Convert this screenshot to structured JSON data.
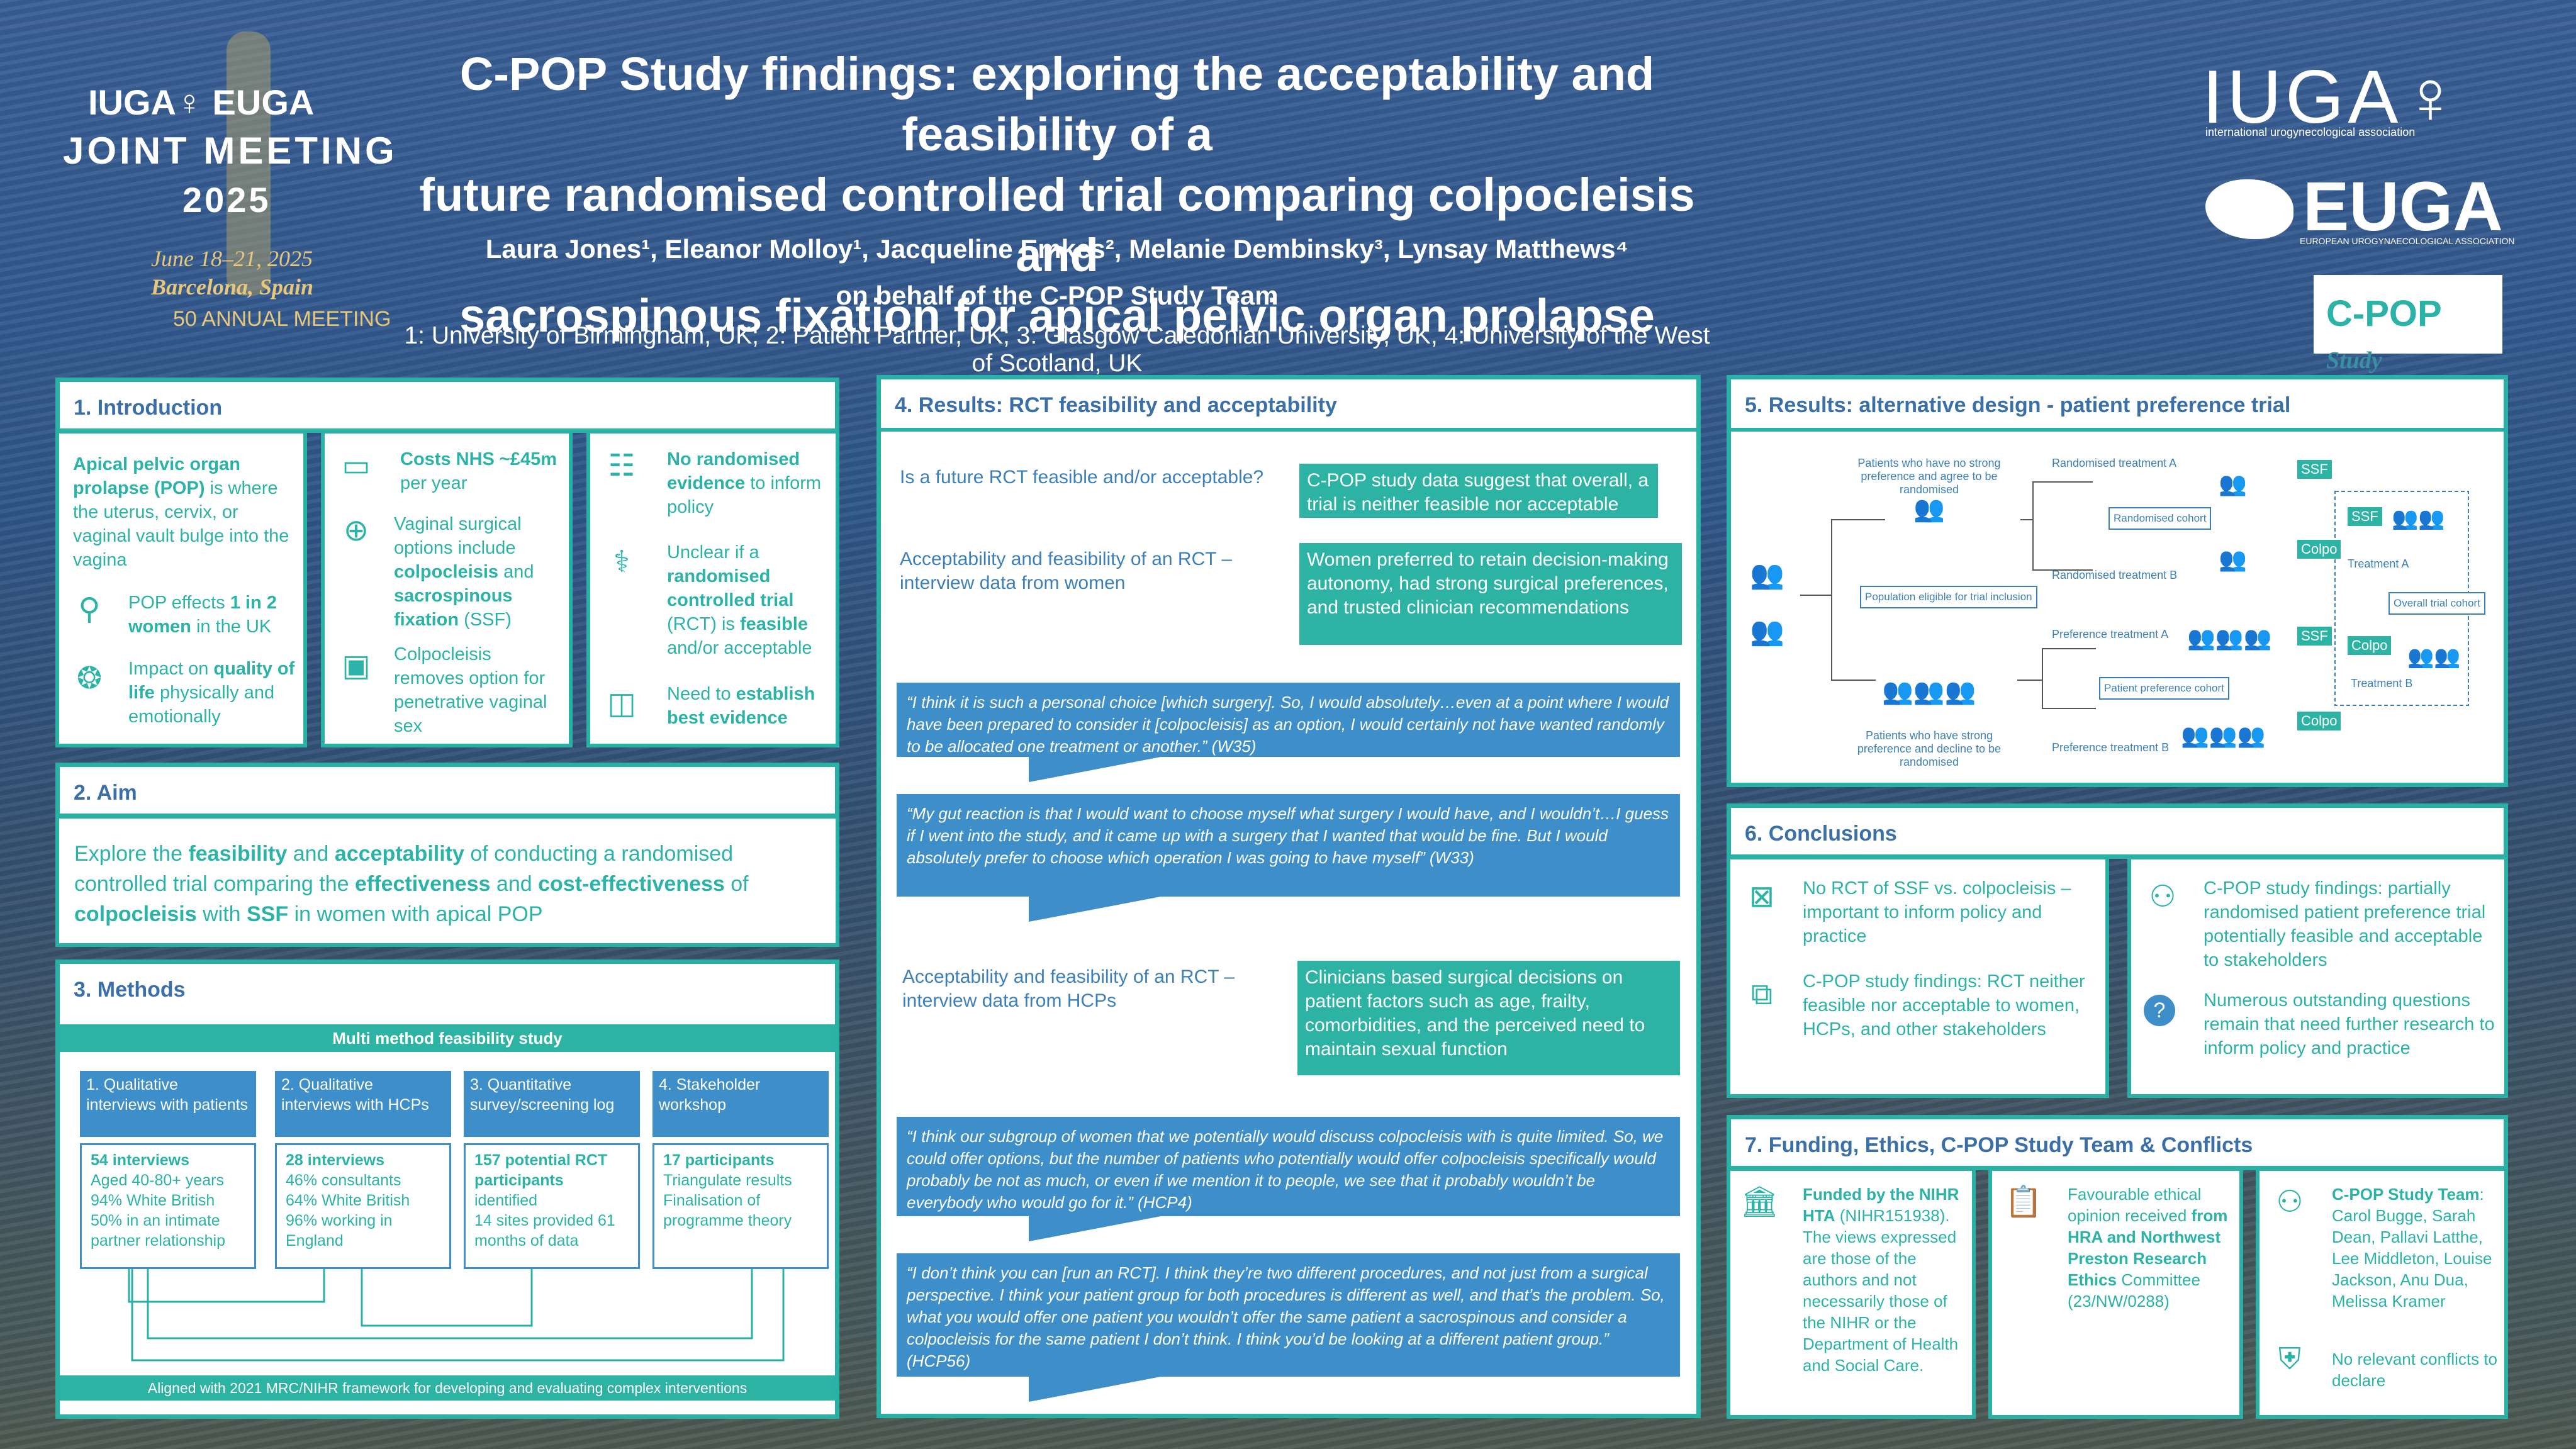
{
  "header": {
    "title_lines": [
      "C-POP Study findings: exploring the acceptability and feasibility of a",
      "future randomised controlled trial comparing colpocleisis and",
      "sacrospinous fixation for apical pelvic organ prolapse"
    ],
    "authors": "Laura Jones¹, Eleanor Molloy¹, Jacqueline Emkes², Melanie Dembinsky³, Lynsay Matthews⁴",
    "behalf": "on behalf of the C-POP Study Team",
    "affiliations": "1: University of Birmingham, UK; 2: Patient Partner, UK; 3: Glasgow Caledonian University, UK, 4: University of the West of Scotland, UK"
  },
  "logos": {
    "joint_meeting": {
      "line1": "IUGA♀ EUGA",
      "line2": "JOINT MEETING",
      "line3": "2025",
      "date": "June 18–21, 2025",
      "place": "Barcelona, Spain",
      "anniversary": "50 ANNUAL MEETING"
    },
    "iuga": {
      "name": "IUGA♀",
      "sub": "international urogynecological association"
    },
    "euga": {
      "name": "EUGA",
      "sub": "EUROPEAN UROGYNAECOLOGICAL ASSOCIATION"
    },
    "cpop": {
      "name": "C-POP",
      "sub": "Study"
    }
  },
  "intro": {
    "heading": "1. Introduction",
    "col1": {
      "pop_def_bold": "Apical pelvic organ prolapse (POP)",
      "pop_def_rest": " is where the uterus, cervix, or vaginal vault bulge into the vagina",
      "affects_pre": "POP effects ",
      "affects_bold": "1 in 2 women",
      "affects_post": " in the UK",
      "impact_pre": "Impact on ",
      "impact_bold": "quality of life",
      "impact_post": " physically and emotionally"
    },
    "col2": {
      "cost_bold": "Costs NHS ~£45m",
      "cost_post": " per year",
      "vag_pre": "Vaginal surgical options include ",
      "vag_b1": "colpocleisis",
      "vag_mid": " and ",
      "vag_b2": "sacrospinous fixation",
      "vag_post": " (SSF)",
      "colpo": "Colpocleisis removes option for penetrative vaginal sex"
    },
    "col3": {
      "no_rct_bold": "No randomised evidence",
      "no_rct_post": " to inform policy",
      "unclear_pre": "Unclear if a ",
      "unclear_b1": "randomised controlled trial",
      "unclear_mid": " (RCT) is ",
      "unclear_b2": "feasible",
      "unclear_post": " and/or acceptable",
      "need_pre": "Need to ",
      "need_bold": "establish best evidence"
    }
  },
  "aim": {
    "heading": "2. Aim",
    "p1": "Explore the ",
    "b1": "feasibility",
    "p2": " and ",
    "b2": "acceptability",
    "p3": " of conducting a randomised controlled trial comparing the ",
    "b3": "effectiveness",
    "p4": " and ",
    "b4": "cost-effectiveness",
    "p5": " of ",
    "b5": "colpocleisis",
    "p6": " with ",
    "b6": "SSF",
    "p7": " in women with apical POP"
  },
  "methods": {
    "heading": "3. Methods",
    "banner": "Multi method feasibility study",
    "footer": "Aligned with 2021 MRC/NIHR framework for developing and evaluating complex interventions",
    "boxes": [
      {
        "title": "1. Qualitative interviews with patients",
        "lead": "54 interviews",
        "items": [
          "Aged 40-80+ years",
          "94% White British",
          "50% in an intimate partner relationship"
        ]
      },
      {
        "title": "2. Qualitative interviews with HCPs",
        "lead": "28 interviews",
        "items": [
          "46% consultants",
          "64% White British",
          "96% working in England"
        ]
      },
      {
        "title": "3. Quantitative survey/screening log",
        "lead": "157 potential RCT participants",
        "items": [
          "identified",
          "14 sites provided 61 months of data"
        ]
      },
      {
        "title": "4. Stakeholder workshop",
        "lead": "17 participants",
        "items": [
          "Triangulate results",
          "Finalisation of programme theory"
        ]
      }
    ]
  },
  "results": {
    "heading": "4. Results: RCT feasibility and acceptability",
    "q1": "Is a future RCT feasible and/or acceptable?",
    "a1": "C-POP study data suggest that overall, a trial is neither feasible nor acceptable",
    "q2": "Acceptability and feasibility of an RCT – interview data from women",
    "a2": "Women preferred to retain decision-making autonomy, had strong surgical preferences, and trusted clinician recommendations",
    "quote1": "“I think it is such a personal choice [which surgery]. So, I would absolutely…even at a point where I would have been prepared to consider it [colpocleisis] as an option, I would certainly not have wanted randomly to be allocated one treatment or another.” (W35)",
    "quote2": "“My gut reaction is that I would want to choose myself what surgery I would have, and I wouldn’t…I guess if I went into the study, and it came up with a surgery that I wanted that would be fine.  But I would absolutely prefer to choose which operation I was going to have myself” (W33)",
    "q3": "Acceptability and feasibility of an RCT – interview data from HCPs",
    "a3": "Clinicians based surgical decisions on patient factors such as age, frailty, comorbidities, and the perceived need to maintain sexual function",
    "quote3": "“I think our subgroup of women that we potentially would discuss colpocleisis with is quite limited. So, we could offer options, but the number of patients who potentially would offer colpocleisis specifically would probably be not as much, or even if we mention it to people, we see that it probably wouldn’t be everybody who would go for it.” (HCP4)",
    "quote4": "“I don’t think you can [run an RCT].  I think they’re two different procedures, and not just from a surgical perspective. I think your patient group for both procedures is different as well, and that’s the problem. So, what you would offer one patient you wouldn’t offer the same patient a sacrospinous and consider a colpocleisis for the same patient I don’t think. I think you’d be looking at a different patient group.” (HCP56)"
  },
  "alt_design": {
    "heading": "5. Results: alternative design - patient preference trial",
    "no_pref": "Patients who have no strong preference and agree to be randomised",
    "has_pref": "Patients who have strong preference and decline to be randomised",
    "population": "Population eligible for trial inclusion",
    "rand_a": "Randomised treatment A",
    "rand_b": "Randomised treatment B",
    "rand_cohort": "Randomised cohort",
    "pref_a": "Preference treatment A",
    "pref_b": "Preference treatment B",
    "pref_cohort": "Patient preference cohort",
    "ssf": "SSF",
    "colpo": "Colpo",
    "treat_a": "Treatment A",
    "treat_b": "Treatment B",
    "overall": "Overall trial cohort"
  },
  "conclusions": {
    "heading": "6. Conclusions",
    "c1": "No RCT of SSF vs. colpocleisis – important to inform policy and practice",
    "c2": "C-POP study findings: RCT neither feasible nor acceptable to women, HCPs, and other stakeholders",
    "c3": "C-POP study findings: partially randomised patient preference trial potentially feasible and acceptable to stakeholders",
    "c4": "Numerous outstanding questions remain that need further research to inform policy and practice"
  },
  "funding": {
    "heading": "7. Funding, Ethics, C-POP Study Team & Conflicts",
    "f_bold": "Funded by the NIHR HTA",
    "f_rest": " (NIHR151938). The views expressed are those of the authors and not necessarily those of the NIHR or the Department of Health and Social Care.",
    "e_pre": "Favourable ethical opinion received ",
    "e_bold": "from HRA and Northwest Preston Research Ethics",
    "e_post": " Committee (23/NW/0288)",
    "t_bold": "C-POP Study Team",
    "t_rest": ": Carol Bugge, Sarah Dean, Pallavi Latthe, Lee Middleton, Louise Jackson, Anu Dua, Melissa Kramer",
    "conflicts": "No relevant conflicts to declare"
  }
}
